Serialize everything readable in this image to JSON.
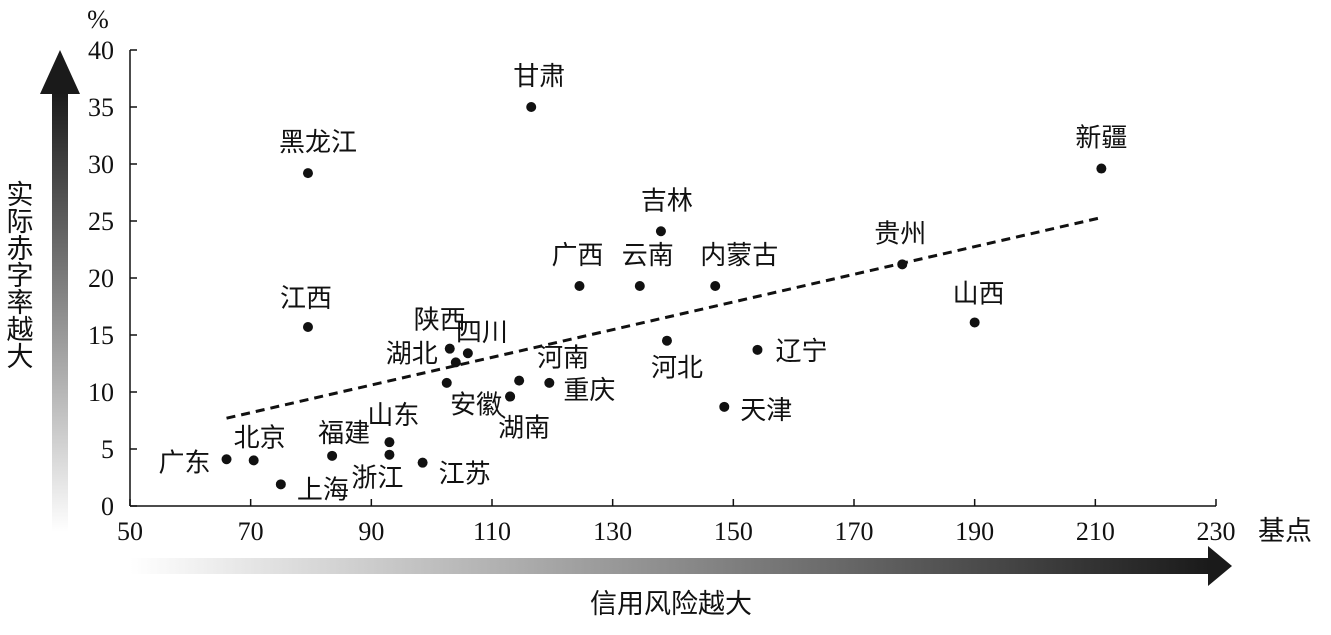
{
  "chart_data": {
    "type": "scatter",
    "xlabel": "基点",
    "ylabel": "%",
    "xlim": [
      50,
      230
    ],
    "ylim": [
      0,
      40
    ],
    "x_ticks": [
      50,
      70,
      90,
      110,
      130,
      150,
      170,
      190,
      210,
      230
    ],
    "y_ticks": [
      0,
      5,
      10,
      15,
      20,
      25,
      30,
      35,
      40
    ],
    "x_arrow_label": "信用风险越大",
    "y_arrow_label": "实际赤字率越大",
    "trendline": {
      "style": "dashed",
      "from": [
        66,
        7.7
      ],
      "to": [
        211,
        25.3
      ]
    },
    "points": [
      {
        "name": "甘肃",
        "x": 116.5,
        "y": 35.0
      },
      {
        "name": "新疆",
        "x": 211.0,
        "y": 29.6
      },
      {
        "name": "黑龙江",
        "x": 79.5,
        "y": 29.2
      },
      {
        "name": "吉林",
        "x": 138.0,
        "y": 24.1
      },
      {
        "name": "贵州",
        "x": 178.0,
        "y": 21.2
      },
      {
        "name": "广西",
        "x": 124.5,
        "y": 19.3
      },
      {
        "name": "云南",
        "x": 134.5,
        "y": 19.3
      },
      {
        "name": "内蒙古",
        "x": 147.0,
        "y": 19.3
      },
      {
        "name": "山西",
        "x": 190.0,
        "y": 16.1
      },
      {
        "name": "江西",
        "x": 79.5,
        "y": 15.7
      },
      {
        "name": "河北",
        "x": 139.0,
        "y": 14.5
      },
      {
        "name": "陕西",
        "x": 103.0,
        "y": 13.8
      },
      {
        "name": "四川",
        "x": 106.0,
        "y": 13.4
      },
      {
        "name": "辽宁",
        "x": 154.0,
        "y": 13.7
      },
      {
        "name": "湖北",
        "x": 104.0,
        "y": 12.6
      },
      {
        "name": "河南",
        "x": 114.5,
        "y": 11.0
      },
      {
        "name": "重庆",
        "x": 119.5,
        "y": 10.8
      },
      {
        "name": "",
        "x": 102.5,
        "y": 10.8
      },
      {
        "name": "安徽",
        "x": 113.0,
        "y": 9.6
      },
      {
        "name": "湖南",
        "x": 113.0,
        "y": 9.6
      },
      {
        "name": "天津",
        "x": 148.5,
        "y": 8.7
      },
      {
        "name": "山东",
        "x": 93.0,
        "y": 5.6
      },
      {
        "name": "福建",
        "x": 83.5,
        "y": 4.4
      },
      {
        "name": "浙江",
        "x": 93.0,
        "y": 4.5
      },
      {
        "name": "广东",
        "x": 66.0,
        "y": 4.1
      },
      {
        "name": "北京",
        "x": 70.5,
        "y": 4.0
      },
      {
        "name": "江苏",
        "x": 98.5,
        "y": 3.8
      },
      {
        "name": "上海",
        "x": 75.0,
        "y": 1.9
      }
    ]
  }
}
